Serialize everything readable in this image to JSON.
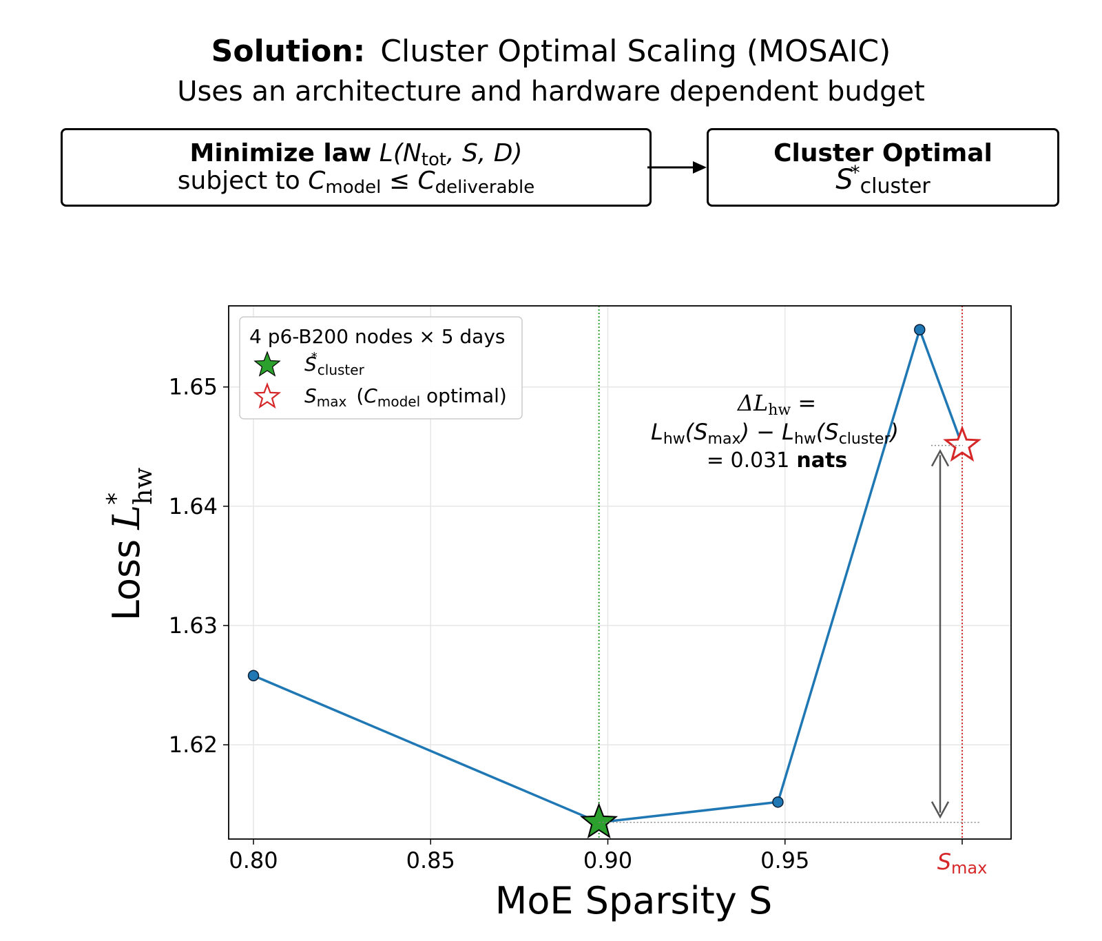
{
  "header": {
    "title_bold": "Solution:",
    "title_rest": "Cluster Optimal Scaling (MOSAIC)",
    "subtitle": "Uses an architecture and hardware dependent budget"
  },
  "flow": {
    "left_box": {
      "bold_text": "Minimize law",
      "law_symbol": "L",
      "law_args": "(N",
      "law_sub": "tot",
      "law_rest": ", S, D)",
      "subject_text": "subject to",
      "c_symbol": "C",
      "c_sub_model": "model",
      "leq": " ≤ ",
      "c_sub_deliverable": "deliverable"
    },
    "right_box": {
      "title": "Cluster Optimal",
      "s_symbol": "S",
      "s_sup": "*",
      "s_sub": "cluster"
    }
  },
  "colors": {
    "line": "#1f77b4",
    "cluster_marker": "#2ca02c",
    "smax_marker": "#d62728",
    "arrow": "#555555",
    "grid": "#e6e6e6"
  },
  "chart_data": {
    "type": "line",
    "xlabel": "MoE Sparsity S",
    "ylabel": "Loss",
    "ylabel_symbol": "L",
    "ylabel_sup": "*",
    "ylabel_sub": "hw",
    "xlim": [
      0.793,
      1.0138
    ],
    "ylim": [
      1.6121,
      1.6568
    ],
    "xticks": [
      {
        "value": 0.8,
        "label": "0.80"
      },
      {
        "value": 0.85,
        "label": "0.85"
      },
      {
        "value": 0.9,
        "label": "0.90"
      },
      {
        "value": 0.95,
        "label": "0.95"
      },
      {
        "value": 1.0,
        "label": "S",
        "label_sub": "max"
      }
    ],
    "yticks": [
      {
        "value": 1.62,
        "label": "1.62"
      },
      {
        "value": 1.63,
        "label": "1.63"
      },
      {
        "value": 1.64,
        "label": "1.64"
      },
      {
        "value": 1.65,
        "label": "1.65"
      }
    ],
    "grid": true,
    "series": [
      {
        "points": [
          {
            "x": 0.8,
            "y": 1.6258
          },
          {
            "x": 0.8975,
            "y": 1.6135
          },
          {
            "x": 0.948,
            "y": 1.6152
          },
          {
            "x": 0.988,
            "y": 1.6548
          },
          {
            "x": 1.0,
            "y": 1.6451
          }
        ],
        "markers": [
          0,
          2,
          3
        ]
      }
    ],
    "star_points": [
      {
        "x": 0.8975,
        "y": 1.6135,
        "kind": "cluster"
      },
      {
        "x": 1.0,
        "y": 1.6451,
        "kind": "smax"
      }
    ],
    "vlines": [
      {
        "x": 0.8975,
        "kind": "cluster"
      },
      {
        "x": 1.0,
        "kind": "smax"
      }
    ],
    "legend": {
      "placement": "top-left",
      "title": "4 p6-B200 nodes × 5 days",
      "entries": [
        {
          "symbol": "S",
          "sup": "*",
          "sub": "cluster",
          "extra": "",
          "extra_sub": "",
          "extra_tail": ""
        },
        {
          "symbol": "S",
          "sup": "",
          "sub": "max",
          "extra": "(C",
          "extra_sub": "model",
          "extra_tail": " optimal)"
        }
      ]
    },
    "annotation": {
      "line1_delta": "ΔL",
      "line1_sub": "hw",
      "line1_eq": " =",
      "line2_a": "L",
      "line2_a_sub": "hw",
      "line2_b": "(S",
      "line2_b_sub": "max",
      "line2_c": ") − L",
      "line2_c_sub": "hw",
      "line2_d": "(S",
      "line2_d_sub": "cluster",
      "line2_e": ")",
      "line3_value": "= 0.031",
      "line3_unit": "nats",
      "from_y": 1.6451,
      "to_y": 1.6135
    }
  }
}
